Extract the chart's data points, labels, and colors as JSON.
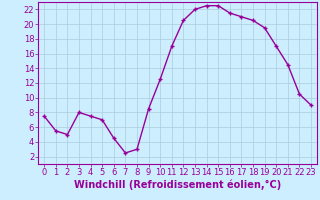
{
  "x": [
    0,
    1,
    2,
    3,
    4,
    5,
    6,
    7,
    8,
    9,
    10,
    11,
    12,
    13,
    14,
    15,
    16,
    17,
    18,
    19,
    20,
    21,
    22,
    23
  ],
  "y": [
    7.5,
    5.5,
    5.0,
    8.0,
    7.5,
    7.0,
    4.5,
    2.5,
    3.0,
    8.5,
    12.5,
    17.0,
    20.5,
    22.0,
    22.5,
    22.5,
    21.5,
    21.0,
    20.5,
    19.5,
    17.0,
    14.5,
    10.5,
    9.0
  ],
  "line_color": "#990099",
  "marker": "+",
  "marker_size": 3,
  "bg_color": "#cceeff",
  "grid_color": "#aaccdd",
  "xlabel": "Windchill (Refroidissement éolien,°C)",
  "xlabel_color": "#990099",
  "tick_color": "#990099",
  "spine_color": "#990099",
  "xlim": [
    -0.5,
    23.5
  ],
  "ylim": [
    1,
    23
  ],
  "yticks": [
    2,
    4,
    6,
    8,
    10,
    12,
    14,
    16,
    18,
    20,
    22
  ],
  "xticks": [
    0,
    1,
    2,
    3,
    4,
    5,
    6,
    7,
    8,
    9,
    10,
    11,
    12,
    13,
    14,
    15,
    16,
    17,
    18,
    19,
    20,
    21,
    22,
    23
  ],
  "xlabel_fontsize": 7.0,
  "tick_fontsize": 6.0,
  "linewidth": 1.0,
  "markeredgewidth": 1.0
}
